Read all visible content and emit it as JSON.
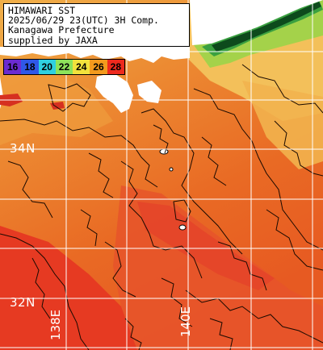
{
  "title": {
    "lines": [
      "HIMAWARI SST",
      "2025/06/29 23(UTC) 3H Comp.",
      "Kanagawa Prefecture",
      "supplied by JAXA"
    ]
  },
  "legend": {
    "items": [
      {
        "label": "16",
        "color": "#6b2bd1"
      },
      {
        "label": "18",
        "color": "#2f58e8"
      },
      {
        "label": "20",
        "color": "#2fd0e0"
      },
      {
        "label": "22",
        "color": "#8de35a"
      },
      {
        "label": "24",
        "color": "#f2e23c"
      },
      {
        "label": "26",
        "color": "#f39a1d"
      },
      {
        "label": "28",
        "color": "#ee2a1e"
      }
    ]
  },
  "map": {
    "latitude_labels": [
      "34N",
      "32N"
    ],
    "longitude_labels": [
      "138E",
      "140E"
    ],
    "colors": {
      "land": "#ffffff",
      "sea_cool": "#f0a544",
      "sea_mid": "#ea7a2c",
      "sea_warm": "#e95a1e",
      "sea_hot": "#e63a22",
      "grid": "#ffffff",
      "coast_green": "#3aa040",
      "coast_dark": "#0d4a1c"
    }
  }
}
